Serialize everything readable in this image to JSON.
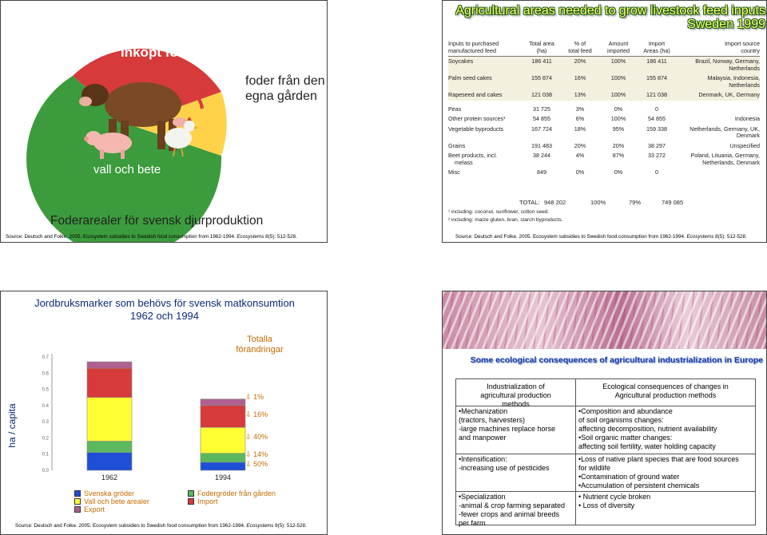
{
  "slide1": {
    "label_purchased": "inköpt foder",
    "label_own_farm": [
      "foder från den",
      "egna gården"
    ],
    "label_ley": "vall och bete",
    "caption": "Foderarealer för svensk djurproduktion",
    "source": {
      "pre": "Source: Deutsch and Folke. 2005. Ecosystem subsidies to Swedish food consumption from 1962-1994. ",
      "journal": "Ecosystems",
      "post": " 8(5): 512-528."
    }
  },
  "slide2": {
    "title_line1": "Agricultural areas needed to grow livestock feed inputs",
    "title_line2": "Sweden 1999",
    "headers": [
      [
        "Inputs to purchased",
        "manufactured feed"
      ],
      [
        "Total area",
        "(ha)"
      ],
      [
        "% of",
        "total feed"
      ],
      [
        "Amount",
        "imported"
      ],
      [
        "Import",
        "Areas (ha)"
      ],
      [
        "Import source",
        "country"
      ]
    ],
    "rows": [
      {
        "name": "Soycakes",
        "area": "186 411",
        "pct": "20%",
        "imp": "100%",
        "imp_area": "186 411",
        "country": [
          "Brazil, Norway, Germany,",
          "Netherlands"
        ]
      },
      {
        "name": "Palm seed cakes",
        "area": "155 874",
        "pct": "16%",
        "imp": "100%",
        "imp_area": "155 874",
        "country": [
          "Malaysia, Indonesia,",
          "Netherlands"
        ]
      },
      {
        "name": "Rapeseed and cakes",
        "area": "121 038",
        "pct": "13%",
        "imp": "100%",
        "imp_area": "121 038",
        "country": [
          "Denmark, UK, Germany",
          ""
        ]
      },
      {
        "name": "Peas",
        "area": "31 725",
        "pct": "3%",
        "imp": "0%",
        "imp_area": "0",
        "country": [
          "",
          ""
        ]
      },
      {
        "name": "Other protein sources¹",
        "area": "54 855",
        "pct": "6%",
        "imp": "100%",
        "imp_area": "54 855",
        "country": [
          "Indonesia",
          ""
        ]
      },
      {
        "name": "Vegetable byproducts",
        "area": "167 724",
        "pct": "18%",
        "imp": "95%",
        "imp_area": "159 338",
        "country": [
          "Netherlands, Germany, UK,",
          "Denmark"
        ]
      },
      {
        "name": "Grains",
        "area": "191 483",
        "pct": "20%",
        "imp": "20%",
        "imp_area": "38 297",
        "country": [
          "Unspecified",
          ""
        ]
      },
      {
        "name": "Beet products, incl.",
        "name2": "melass",
        "area": "38 244",
        "pct": "4%",
        "imp": "87%",
        "imp_area": "33 272",
        "country": [
          "Poland, Lituania, Germany,",
          "Netherlands, Denmark"
        ]
      },
      {
        "name": "Misc",
        "area": "849",
        "pct": "0%",
        "imp": "0%",
        "imp_area": "0",
        "country": [
          "",
          ""
        ]
      }
    ],
    "total": {
      "label": "TOTAL:",
      "area": "948 202",
      "pct": "100%",
      "imp": "79%",
      "imp_area": "749 085"
    },
    "footnote1": "¹ including: coconut, sunflower, cotton seed.",
    "footnote2": "² including: maize gluten, bran, starch byproducts.",
    "source": {
      "pre": "Source: Deutsch and Folke. 2005. Ecosystem subsidies to Swedish food consumption from 1962-1994. ",
      "journal": "Ecosystems",
      "post": " 8(5): 512-528."
    }
  },
  "slide3": {
    "title_line1": "Jordbruksmarker som behövs för svensk matkonsumtion",
    "title_line2": "1962 och 1994",
    "changes_label": [
      "Totalla",
      "förändringar"
    ],
    "changes": [
      "1%",
      "16%",
      "40%",
      "14%",
      "50%"
    ],
    "legend": [
      {
        "label": "Svenska gröder",
        "color": "#1f4fd6"
      },
      {
        "label": "Vall och bete arealer",
        "color": "#ffff33"
      },
      {
        "label": "Export",
        "color": "#b06090"
      },
      {
        "label": "Fodergröder från gården",
        "color": "#5cb85c"
      },
      {
        "label": "Import",
        "color": "#d63a3a"
      }
    ],
    "source": {
      "pre": "Source: Deutsch and Folke. 2005. Ecosystem subsidies to Swedish food consumption from 1962-1994. ",
      "journal": "Ecosystems",
      "post": " 8(5): 512-528."
    }
  },
  "chart_data": {
    "type": "bar",
    "stacked": true,
    "title": "Jordbruksmarker som behövs för svensk matkonsumtion 1962 och 1994",
    "ylabel": "ha / capita",
    "ylim": [
      0,
      0.7
    ],
    "yticks": [
      "0.0",
      "0.1",
      "0.2",
      "0.3",
      "0.4",
      "0.5",
      "0.6",
      "0.7"
    ],
    "categories": [
      "1962",
      "1994"
    ],
    "series": [
      {
        "name": "Svenska gröder",
        "color": "#1f4fd6",
        "values": [
          0.11,
          0.05
        ]
      },
      {
        "name": "Fodergröder från gården",
        "color": "#5cb85c",
        "values": [
          0.07,
          0.055
        ]
      },
      {
        "name": "Vall och bete arealer",
        "color": "#ffff33",
        "values": [
          0.27,
          0.16
        ]
      },
      {
        "name": "Import",
        "color": "#d63a3a",
        "values": [
          0.18,
          0.135
        ]
      },
      {
        "name": "Export",
        "color": "#b06090",
        "values": [
          0.04,
          0.04
        ]
      }
    ]
  },
  "slide4": {
    "subtitle": "Some ecological consequences of agricultural industrialization in Europe",
    "col1_header": [
      "Industrialization of",
      "agricultural  production",
      "methods"
    ],
    "col2_header": [
      "Ecological consequences of changes in",
      "Agricultural production methods"
    ],
    "blocks": [
      {
        "left": [
          "•Mechanization",
          " (tractors, harvesters)",
          " -large machines replace horse",
          "  and manpower"
        ],
        "right": [
          "•Composition and abundance",
          "  of soil organisms changes:",
          "   affecting decomposition, nutrient availability",
          "•Soil organic matter changes:",
          "   affecting soil fertility, water holding capacity"
        ]
      },
      {
        "left": [
          "•Intensification:",
          " -increasing use of  pesticides"
        ],
        "right": [
          "•Loss of native plant species that are food sources",
          "  for wildlife",
          "•Contamination of ground water",
          "•Accumulation of persistent chemicals"
        ]
      },
      {
        "left": [
          "•Specialization",
          " -animal & crop farming separated",
          " -fewer crops and animal breeds",
          "per farm"
        ],
        "right": [
          "• Nutrient cycle broken",
          "• Loss of diversity"
        ]
      }
    ]
  }
}
